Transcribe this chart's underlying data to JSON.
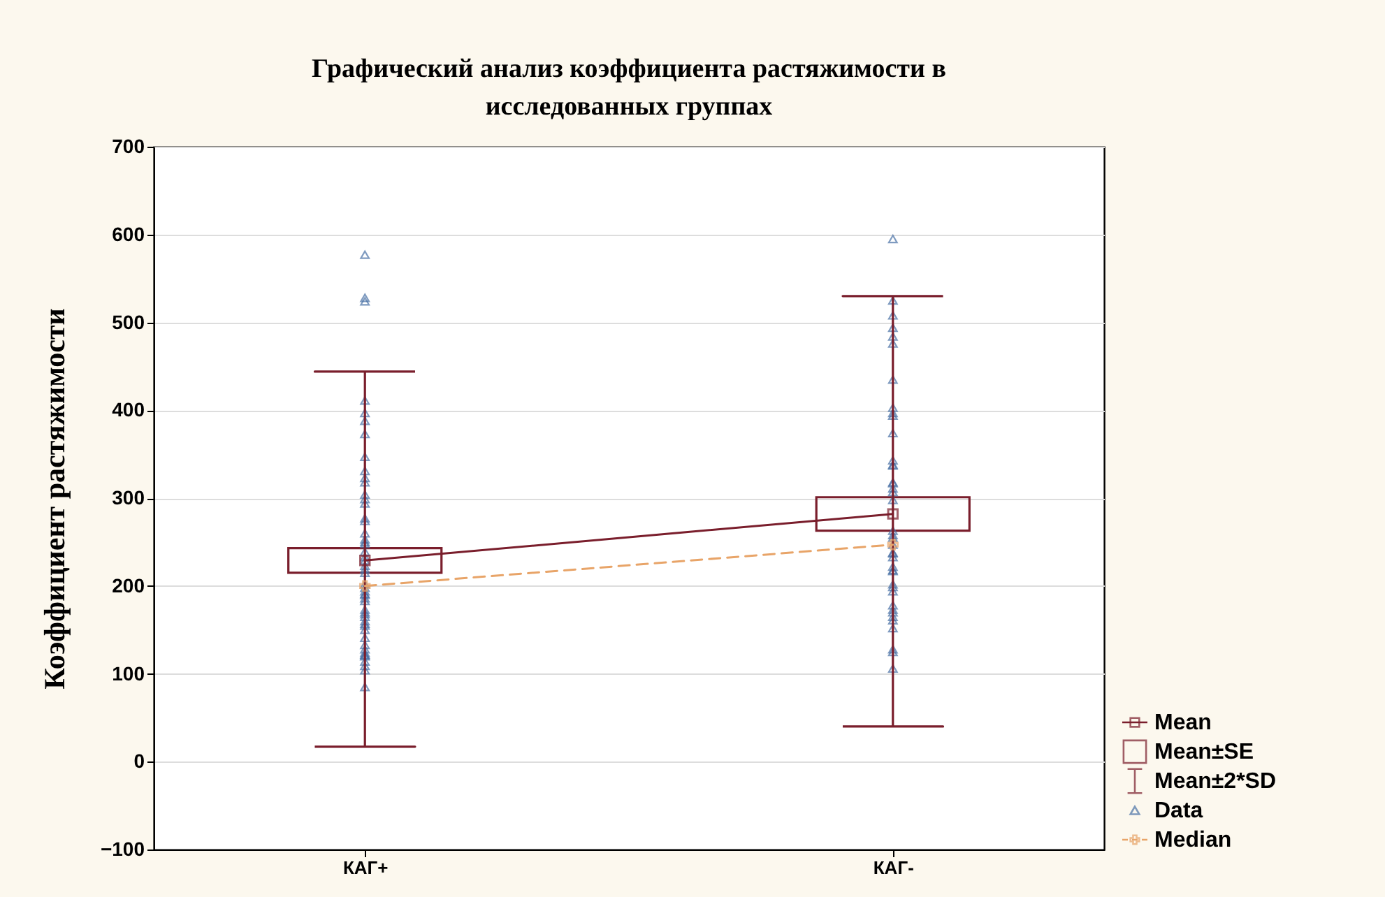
{
  "chart_data": {
    "type": "line",
    "title": "Графический анализ коэффициента растяжимости в исследованных группах",
    "ylabel": "Коэффициент растяжимости",
    "categories": [
      "КАГ+",
      "КАГ-"
    ],
    "ylim": [
      -100,
      700
    ],
    "yticks": [
      -100,
      0,
      100,
      200,
      300,
      400,
      500,
      600,
      700
    ],
    "grid": "y",
    "legend": "right",
    "annotations": [
      "Mean±2*SD"
    ],
    "series": [
      {
        "name": "Mean",
        "color": "#7a1e2c",
        "marker": "square",
        "values": [
          229,
          282
        ],
        "errors": [
          [
            17,
            444
          ],
          [
            40,
            530
          ]
        ]
      },
      {
        "name": "Mean±SE",
        "type": "bar",
        "color": "#7a1e2c",
        "base": [
          215,
          263
        ],
        "values": [
          28,
          38
        ]
      },
      {
        "name": "Data",
        "type": "scatter",
        "color": "#4a72a6",
        "marker": "triangle",
        "x": [
          "КАГ+",
          "КАГ+",
          "КАГ+",
          "КАГ+",
          "КАГ+",
          "КАГ+",
          "КАГ+",
          "КАГ+",
          "КАГ+",
          "КАГ+",
          "КАГ+",
          "КАГ+",
          "КАГ+",
          "КАГ+",
          "КАГ+",
          "КАГ+",
          "КАГ+",
          "КАГ+",
          "КАГ+",
          "КАГ+",
          "КАГ+",
          "КАГ+",
          "КАГ+",
          "КАГ+",
          "КАГ+",
          "КАГ+",
          "КАГ+",
          "КАГ+",
          "КАГ+",
          "КАГ+",
          "КАГ+",
          "КАГ+",
          "КАГ+",
          "КАГ+",
          "КАГ+",
          "КАГ+",
          "КАГ+",
          "КАГ+",
          "КАГ+",
          "КАГ+",
          "КАГ+",
          "КАГ+",
          "КАГ+",
          "КАГ+",
          "КАГ+",
          "КАГ+",
          "КАГ+",
          "КАГ+",
          "КАГ+",
          "КАГ+",
          "КАГ+",
          "КАГ+",
          "КАГ-",
          "КАГ-",
          "КАГ-",
          "КАГ-",
          "КАГ-",
          "КАГ-",
          "КАГ-",
          "КАГ-",
          "КАГ-",
          "КАГ-",
          "КАГ-",
          "КАГ-",
          "КАГ-",
          "КАГ-",
          "КАГ-",
          "КАГ-",
          "КАГ-",
          "КАГ-",
          "КАГ-",
          "КАГ-",
          "КАГ-",
          "КАГ-",
          "КАГ-",
          "КАГ-",
          "КАГ-",
          "КАГ-",
          "КАГ-",
          "КАГ-",
          "КАГ-",
          "КАГ-",
          "КАГ-",
          "КАГ-",
          "КАГ-",
          "КАГ-",
          "КАГ-",
          "КАГ-",
          "КАГ-",
          "КАГ-",
          "КАГ-",
          "КАГ-",
          "КАГ-"
        ],
        "values": [
          577,
          528,
          524,
          411,
          397,
          388,
          373,
          347,
          331,
          318,
          323,
          304,
          299,
          294,
          277,
          274,
          260,
          253,
          248,
          250,
          239,
          233,
          229,
          223,
          219,
          215,
          202,
          198,
          194,
          191,
          190,
          186,
          183,
          173,
          170,
          168,
          165,
          160,
          157,
          155,
          150,
          141,
          133,
          128,
          124,
          122,
          121,
          120,
          114,
          109,
          104,
          85,
          595,
          525,
          508,
          494,
          484,
          476,
          435,
          403,
          394,
          397,
          374,
          343,
          338,
          337,
          318,
          317,
          311,
          307,
          298,
          263,
          258,
          255,
          247,
          238,
          237,
          233,
          222,
          218,
          217,
          202,
          199,
          194,
          178,
          173,
          170,
          165,
          161,
          152,
          125,
          128,
          106
        ]
      },
      {
        "name": "Median",
        "type": "line",
        "color": "#e8a468",
        "marker": "cross",
        "line_style": "dashed",
        "values": [
          200,
          247
        ]
      }
    ]
  }
}
